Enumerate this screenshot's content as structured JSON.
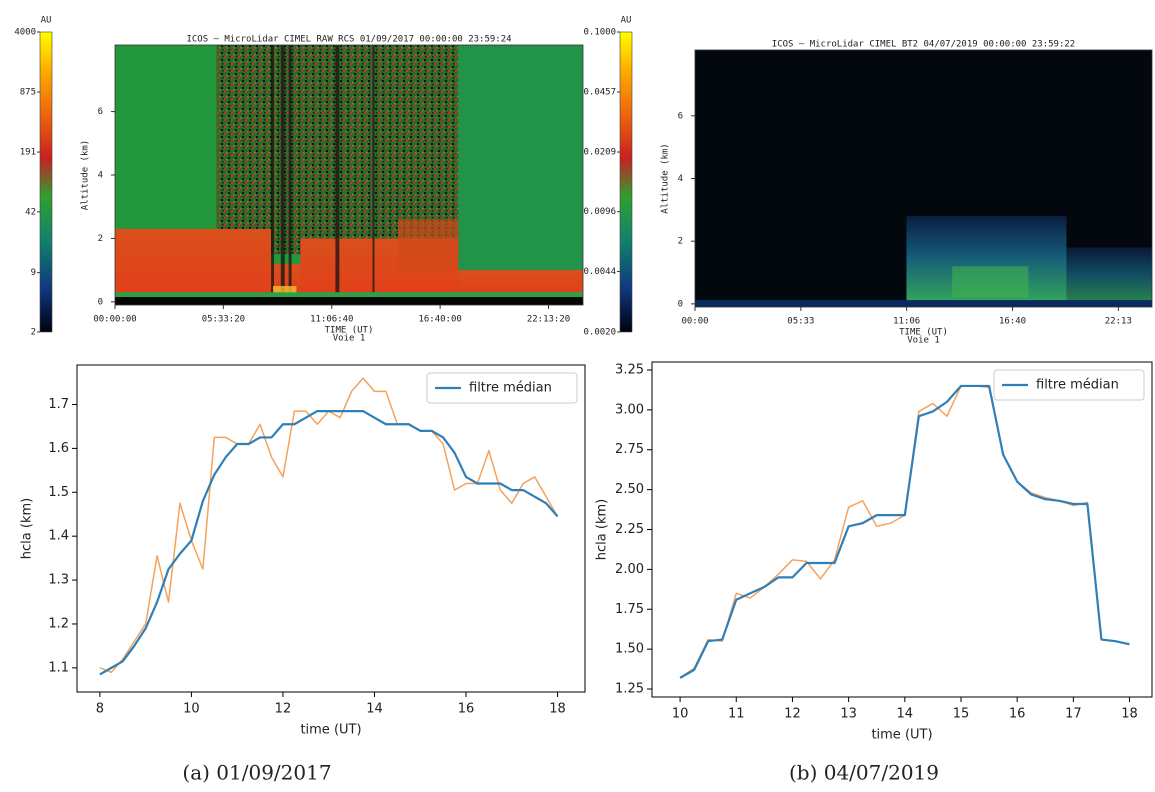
{
  "chart_data": [
    {
      "type": "lidar",
      "title": "ICOS – MicroLidar CIMEL RAW RCS 01/09/2017 00:00:00 23:59:24",
      "ylabel": "Altitude (km)",
      "xlabel": "TIME (UT)",
      "xsublabel": "Voie 1",
      "xlim": [
        0,
        23.99
      ],
      "xticks": [
        {
          "value": 0,
          "label": "00:00:00"
        },
        {
          "value": 5.5556,
          "label": "05:33:20"
        },
        {
          "value": 11.1111,
          "label": "11:06:40"
        },
        {
          "value": 16.6667,
          "label": "16:40:00"
        },
        {
          "value": 22.2222,
          "label": "22:13:20"
        }
      ],
      "ylim": [
        -0.1,
        8.1
      ],
      "yticks": [
        0,
        2,
        4,
        6
      ],
      "colorbars": [
        {
          "position": "left",
          "label": "AU",
          "scale": "log",
          "lim": [
            2,
            4000
          ],
          "ticks": [
            4000,
            875,
            191,
            42,
            9,
            2
          ]
        },
        {
          "position": "right",
          "label": "AU",
          "scale": "log",
          "lim": [
            0.002,
            0.1
          ],
          "ticks": [
            {
              "value": 0.1,
              "label": "0.1000"
            },
            {
              "value": 0.0457,
              "label": "0.0457"
            },
            {
              "value": 0.0209,
              "label": "0.0209"
            },
            {
              "value": 0.0096,
              "label": "0.0096"
            },
            {
              "value": 0.0044,
              "label": "0.0044"
            },
            {
              "value": 0.002,
              "label": "0.0020"
            }
          ]
        }
      ]
    },
    {
      "type": "lidar",
      "title": "ICOS – MicroLidar CIMEL BT2 04/07/2019 00:00:00 23:59:22",
      "ylabel": "Altitude (km)",
      "xlabel": "TIME (UT)",
      "xsublabel": "Voie 1",
      "xlim": [
        0,
        23.99
      ],
      "xticks": [
        {
          "value": 0,
          "label": "00:00"
        },
        {
          "value": 5.5556,
          "label": "05:33"
        },
        {
          "value": 11.1111,
          "label": "11:06"
        },
        {
          "value": 16.6667,
          "label": "16:40"
        },
        {
          "value": 22.2222,
          "label": "22:13"
        }
      ],
      "ylim": [
        -0.1,
        8.1
      ],
      "yticks": [
        0,
        2,
        4,
        6
      ],
      "colorbars": []
    },
    {
      "type": "line",
      "xlabel": "time (UT)",
      "ylabel": "hcla (km)",
      "legend": "upper right",
      "xlim": [
        7.5,
        18.6
      ],
      "xticks": [
        8,
        10,
        12,
        14,
        16,
        18
      ],
      "ylim": [
        1.045,
        1.79
      ],
      "yticks": [
        1.1,
        1.2,
        1.3,
        1.4,
        1.5,
        1.6,
        1.7
      ],
      "x": [
        8,
        8.25,
        8.5,
        8.75,
        9,
        9.25,
        9.5,
        9.75,
        10,
        10.25,
        10.5,
        10.75,
        11,
        11.25,
        11.5,
        11.75,
        12,
        12.25,
        12.5,
        12.75,
        13,
        13.25,
        13.5,
        13.75,
        14,
        14.25,
        14.5,
        14.75,
        15,
        15.25,
        15.5,
        15.75,
        16,
        16.25,
        16.5,
        16.75,
        17,
        17.25,
        17.5,
        17.75,
        18
      ],
      "series": [
        {
          "color": "#f5a25a",
          "values": [
            1.1,
            1.09,
            1.12,
            1.16,
            1.2,
            1.355,
            1.25,
            1.475,
            1.39,
            1.325,
            1.625,
            1.625,
            1.61,
            1.61,
            1.655,
            1.58,
            1.535,
            1.685,
            1.685,
            1.655,
            1.685,
            1.67,
            1.73,
            1.76,
            1.73,
            1.73,
            1.655,
            1.655,
            1.64,
            1.64,
            1.61,
            1.505,
            1.52,
            1.52,
            1.595,
            1.505,
            1.475,
            1.52,
            1.535,
            1.49,
            1.445
          ]
        },
        {
          "name": "filtre médian",
          "color": "#2f7fb8",
          "values": [
            1.085,
            1.1,
            1.115,
            1.15,
            1.19,
            1.25,
            1.325,
            1.36,
            1.39,
            1.48,
            1.54,
            1.58,
            1.61,
            1.61,
            1.625,
            1.625,
            1.655,
            1.655,
            1.67,
            1.685,
            1.685,
            1.685,
            1.685,
            1.685,
            1.67,
            1.655,
            1.655,
            1.655,
            1.64,
            1.64,
            1.625,
            1.59,
            1.535,
            1.52,
            1.52,
            1.52,
            1.505,
            1.505,
            1.49,
            1.475,
            1.445
          ]
        }
      ]
    },
    {
      "type": "line",
      "xlabel": "time (UT)",
      "ylabel": "hcla (km)",
      "legend": "upper right",
      "xlim": [
        9.5,
        18.4
      ],
      "xticks": [
        10,
        11,
        12,
        13,
        14,
        15,
        16,
        17,
        18
      ],
      "ylim": [
        1.2,
        3.3
      ],
      "yticks": [
        1.25,
        {
          "value": 1.5,
          "label": "1.50"
        },
        1.75,
        {
          "value": 2,
          "label": "2.00"
        },
        2.25,
        {
          "value": 2.5,
          "label": "2.50"
        },
        2.75,
        {
          "value": 3,
          "label": "3.00"
        },
        3.25
      ],
      "x": [
        10,
        10.25,
        10.5,
        10.75,
        11,
        11.25,
        11.5,
        11.75,
        12,
        12.25,
        12.5,
        12.75,
        13,
        13.25,
        13.5,
        13.75,
        14,
        14.25,
        14.5,
        14.75,
        15,
        15.25,
        15.5,
        15.75,
        16,
        16.25,
        16.5,
        16.75,
        17,
        17.25,
        17.5,
        17.75,
        18
      ],
      "series": [
        {
          "color": "#f5a25a",
          "values": [
            1.32,
            1.38,
            1.56,
            1.55,
            1.85,
            1.82,
            1.89,
            1.97,
            2.06,
            2.05,
            1.94,
            2.06,
            2.39,
            2.43,
            2.27,
            2.29,
            2.34,
            2.99,
            3.04,
            2.96,
            3.15,
            3.15,
            3.14,
            2.72,
            2.55,
            2.48,
            2.45,
            2.43,
            2.4,
            2.42,
            1.56,
            1.55,
            1.53
          ]
        },
        {
          "name": "filtre médian",
          "color": "#2f7fb8",
          "values": [
            1.32,
            1.37,
            1.55,
            1.56,
            1.81,
            1.85,
            1.89,
            1.95,
            1.95,
            2.04,
            2.04,
            2.04,
            2.27,
            2.29,
            2.34,
            2.34,
            2.34,
            2.96,
            2.99,
            3.05,
            3.15,
            3.15,
            3.15,
            2.72,
            2.55,
            2.47,
            2.44,
            2.43,
            2.41,
            2.41,
            1.56,
            1.55,
            1.53
          ]
        }
      ]
    }
  ],
  "captions": [
    "(a) 01/09/2017",
    "(b) 04/07/2019"
  ]
}
